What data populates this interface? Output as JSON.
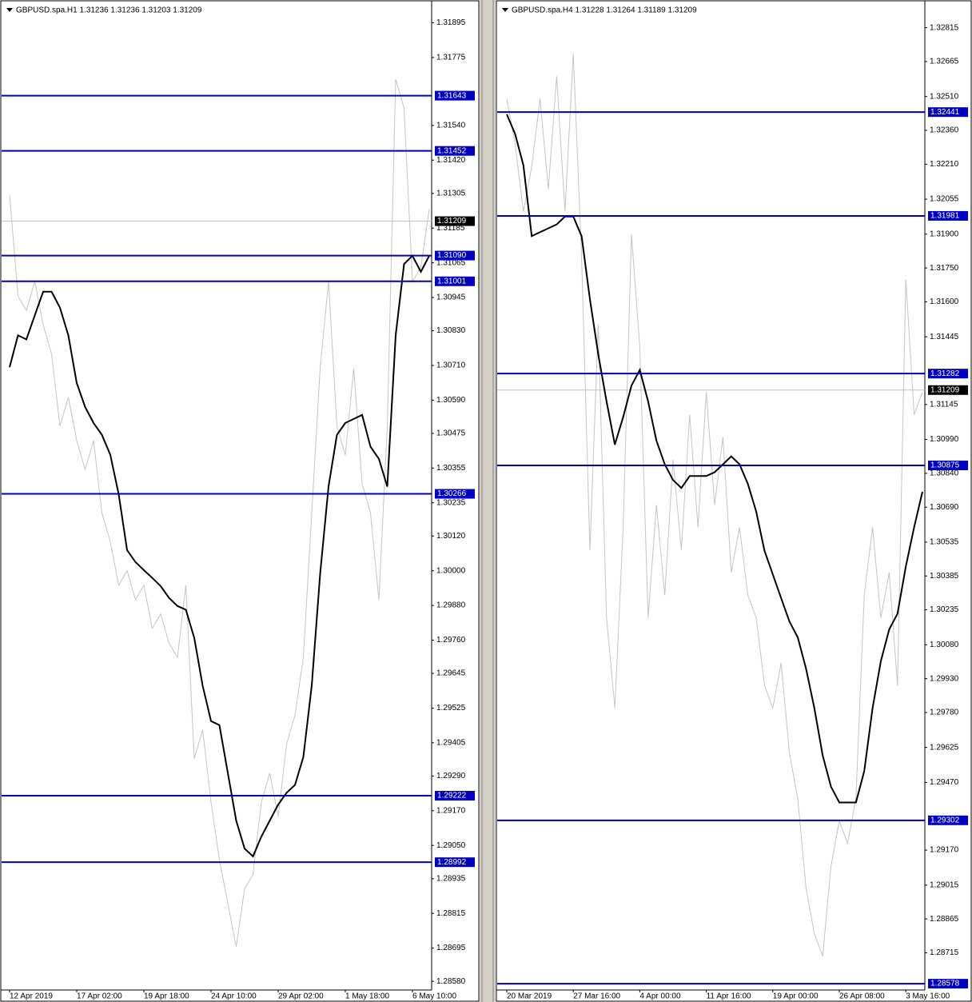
{
  "chart_data": [
    {
      "type": "line",
      "title": "GBPUSD.spa.H1 1.31236 1.31236 1.31203 1.31209",
      "categories": [
        "12 Apr 2019",
        null,
        null,
        null,
        null,
        null,
        null,
        null,
        "17 Apr 02:00",
        null,
        null,
        null,
        null,
        null,
        null,
        null,
        "19 Apr 18:00",
        null,
        null,
        null,
        null,
        null,
        null,
        null,
        "24 Apr 10:00",
        null,
        null,
        null,
        null,
        null,
        null,
        null,
        "29 Apr 02:00",
        null,
        null,
        null,
        null,
        null,
        null,
        null,
        "1 May 18:00",
        null,
        null,
        null,
        null,
        null,
        null,
        null,
        "6 May 10:00",
        null,
        null
      ],
      "series": [
        {
          "color": "#c4c4c4",
          "values": [
            1.313,
            1.3095,
            1.309,
            1.31,
            1.3085,
            1.3075,
            1.305,
            1.306,
            1.3045,
            1.3035,
            1.3045,
            1.302,
            1.301,
            1.2995,
            1.3,
            1.299,
            1.2995,
            1.298,
            1.2985,
            1.2975,
            1.297,
            1.2995,
            1.2935,
            1.2945,
            1.292,
            1.29,
            1.2885,
            1.287,
            1.289,
            1.2895,
            1.292,
            1.293,
            1.2915,
            1.294,
            1.295,
            1.297,
            1.302,
            1.307,
            1.31,
            1.305,
            1.304,
            1.307,
            1.303,
            1.302,
            1.299,
            1.305,
            1.317,
            1.316,
            1.31,
            1.3105,
            1.3125
          ]
        },
        {
          "color": "#000000",
          "values": [
            1.30704,
            1.30814,
            1.308,
            1.30883,
            1.30965,
            1.30965,
            1.3091,
            1.30814,
            1.30649,
            1.30566,
            1.30511,
            1.3047,
            1.30401,
            1.30264,
            1.30071,
            1.3003,
            1.30002,
            1.29975,
            1.29947,
            1.29906,
            1.29878,
            1.29865,
            1.29768,
            1.29603,
            1.2948,
            1.29466,
            1.29301,
            1.29136,
            1.29039,
            1.29012,
            1.29081,
            1.29136,
            1.29191,
            1.29232,
            1.29259,
            1.29356,
            1.29603,
            1.29989,
            1.30291,
            1.3047,
            1.30511,
            1.30525,
            1.30539,
            1.30429,
            1.30387,
            1.30291,
            1.30814,
            1.31061,
            1.31089,
            1.31034,
            1.31089
          ]
        }
      ],
      "ylim": [
        1.2855,
        1.3196
      ],
      "yticks": [
        1.31895,
        1.31775,
        {
          "value": 1.3154,
          "label": "1.31540"
        },
        {
          "value": 1.3142,
          "label": "1.31420"
        },
        1.31305,
        1.31185,
        1.31065,
        1.30945,
        {
          "value": 1.3083,
          "label": "1.30830"
        },
        {
          "value": 1.3071,
          "label": "1.30710"
        },
        {
          "value": 1.3059,
          "label": "1.30590"
        },
        1.30475,
        1.30355,
        1.30235,
        {
          "value": 1.3012,
          "label": "1.30120"
        },
        {
          "value": 1.3,
          "label": "1.30000"
        },
        {
          "value": 1.2988,
          "label": "1.29880"
        },
        {
          "value": 1.2976,
          "label": "1.29760"
        },
        1.29645,
        1.29525,
        1.29405,
        {
          "value": 1.2929,
          "label": "1.29290"
        },
        {
          "value": 1.2917,
          "label": "1.29170"
        },
        {
          "value": 1.2905,
          "label": "1.29050"
        },
        1.28935,
        1.28815,
        1.28695,
        {
          "value": 1.2858,
          "label": "1.28580"
        }
      ],
      "levels": [
        1.31643,
        1.31452,
        {
          "value": 1.3109,
          "label": "1.31090"
        },
        1.31001,
        1.30266,
        1.29222,
        1.28992
      ],
      "levels_color": "#0000c0",
      "last_price": 1.31209,
      "grid": false
    },
    {
      "type": "line",
      "title": "GBPUSD.spa.H4 1.31228 1.31264 1.31189 1.31209",
      "categories": [
        "20 Mar 2019",
        null,
        null,
        null,
        null,
        null,
        null,
        null,
        "27 Mar 16:00",
        null,
        null,
        null,
        null,
        null,
        null,
        null,
        "4 Apr 00:00",
        null,
        null,
        null,
        null,
        null,
        null,
        null,
        "11 Apr 16:00",
        null,
        null,
        null,
        null,
        null,
        null,
        null,
        "19 Apr 00:00",
        null,
        null,
        null,
        null,
        null,
        null,
        null,
        "26 Apr 08:00",
        null,
        null,
        null,
        null,
        null,
        null,
        null,
        "3 May 16:00",
        null,
        null
      ],
      "series": [
        {
          "color": "#c4c4c4",
          "values": [
            1.325,
            1.323,
            1.32,
            1.322,
            1.325,
            1.321,
            1.326,
            1.32,
            1.327,
            1.318,
            1.305,
            1.315,
            1.302,
            1.298,
            1.306,
            1.319,
            1.314,
            1.302,
            1.307,
            1.303,
            1.309,
            1.305,
            1.311,
            1.306,
            1.312,
            1.307,
            1.31,
            1.304,
            1.306,
            1.303,
            1.302,
            1.299,
            1.298,
            1.3,
            1.296,
            1.294,
            1.29,
            1.288,
            1.287,
            1.291,
            1.293,
            1.292,
            1.294,
            1.303,
            1.306,
            1.302,
            1.304,
            1.299,
            1.317,
            1.311,
            1.312
          ]
        },
        {
          "color": "#000000",
          "values": [
            1.32431,
            1.32344,
            1.32205,
            1.31891,
            1.31909,
            1.31926,
            1.31943,
            1.31978,
            1.31978,
            1.31891,
            1.31612,
            1.31368,
            1.31159,
            1.30967,
            1.31089,
            1.31229,
            1.31298,
            1.31159,
            1.30985,
            1.3088,
            1.3081,
            1.30775,
            1.30828,
            1.30828,
            1.30828,
            1.30845,
            1.3088,
            1.30915,
            1.3088,
            1.30793,
            1.30671,
            1.30497,
            1.30392,
            1.30287,
            1.30183,
            1.30113,
            1.29974,
            1.29799,
            1.2959,
            1.29451,
            1.29381,
            1.29381,
            1.29381,
            1.2952,
            1.29799,
            1.30008,
            1.30148,
            1.30218,
            1.30427,
            1.30601,
            1.30758
          ]
        }
      ],
      "ylim": [
        1.2855,
        1.3292
      ],
      "yticks": [
        1.32815,
        1.32665,
        {
          "value": 1.3251,
          "label": "1.32510"
        },
        {
          "value": 1.3236,
          "label": "1.32360"
        },
        {
          "value": 1.3221,
          "label": "1.32210"
        },
        1.32055,
        {
          "value": 1.319,
          "label": "1.31900"
        },
        {
          "value": 1.3175,
          "label": "1.31750"
        },
        {
          "value": 1.316,
          "label": "1.31600"
        },
        1.31445,
        1.31145,
        {
          "value": 1.3099,
          "label": "1.30990"
        },
        {
          "value": 1.3084,
          "label": "1.30840"
        },
        {
          "value": 1.3069,
          "label": "1.30690"
        },
        1.30535,
        1.30385,
        1.30235,
        {
          "value": 1.3008,
          "label": "1.30080"
        },
        {
          "value": 1.2993,
          "label": "1.29930"
        },
        {
          "value": 1.2978,
          "label": "1.29780"
        },
        1.29625,
        {
          "value": 1.2947,
          "label": "1.29470"
        },
        {
          "value": 1.2917,
          "label": "1.29170"
        },
        1.29015,
        1.28865,
        1.28715
      ],
      "levels": [
        1.32441,
        1.31981,
        1.31282,
        1.30875,
        1.29302,
        1.28578
      ],
      "levels_color": "#0000c0",
      "last_price": 1.31209,
      "grid": false
    }
  ]
}
